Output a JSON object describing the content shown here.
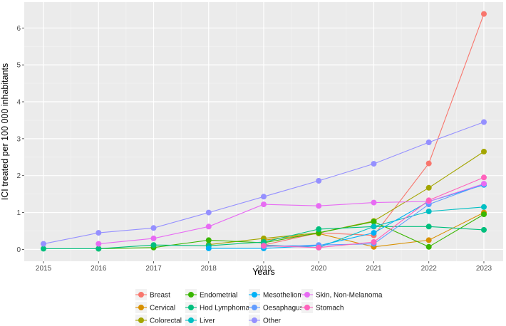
{
  "chart_data": {
    "type": "line",
    "title": "",
    "xlabel": "Years",
    "ylabel": "ICI treated per 100 000 inhabitants",
    "x": [
      2015,
      2016,
      2017,
      2018,
      2019,
      2020,
      2021,
      2022,
      2023
    ],
    "xticks": [
      "2015",
      "2016",
      "2017",
      "2018",
      "2019",
      "2020",
      "2021",
      "2022",
      "2023"
    ],
    "yticks": [
      "0",
      "1",
      "2",
      "3",
      "4",
      "5",
      "6"
    ],
    "xlim": [
      2014.65,
      2023.35
    ],
    "ylim": [
      -0.32,
      6.7
    ],
    "grid": true,
    "legend_position": "bottom",
    "series": [
      {
        "name": "Breast",
        "color": "#F8766D",
        "values": [
          null,
          null,
          null,
          null,
          0.12,
          0.45,
          0.38,
          2.33,
          6.38
        ]
      },
      {
        "name": "Cervical",
        "color": "#D89000",
        "values": [
          null,
          null,
          null,
          null,
          0.25,
          0.43,
          0.07,
          0.25,
          1.0
        ]
      },
      {
        "name": "Colorectal",
        "color": "#A3A500",
        "values": [
          null,
          null,
          null,
          0.13,
          0.3,
          0.45,
          0.77,
          1.67,
          2.65
        ]
      },
      {
        "name": "Endometrial",
        "color": "#39B600",
        "values": [
          null,
          0.02,
          0.05,
          0.25,
          0.18,
          0.45,
          0.75,
          0.07,
          0.95
        ]
      },
      {
        "name": "Hod Lymphoma",
        "color": "#00BF7D",
        "values": [
          0.02,
          0.02,
          0.12,
          0.1,
          0.2,
          0.55,
          0.62,
          0.62,
          0.53
        ]
      },
      {
        "name": "Liver",
        "color": "#00BFC4",
        "values": [
          null,
          null,
          null,
          null,
          0.12,
          0.05,
          0.62,
          1.03,
          1.15
        ]
      },
      {
        "name": "Mesothelioma",
        "color": "#00B0F6",
        "values": [
          null,
          null,
          null,
          0.03,
          0.03,
          0.1,
          0.45,
          1.3,
          1.75
        ]
      },
      {
        "name": "Oesaphagus",
        "color": "#619CFF",
        "values": [
          null,
          null,
          null,
          null,
          0.08,
          0.12,
          0.15,
          1.22,
          1.77
        ]
      },
      {
        "name": "Other",
        "color": "#9590FF",
        "values": [
          0.15,
          0.45,
          0.58,
          1.0,
          1.43,
          1.86,
          2.32,
          2.9,
          3.45
        ]
      },
      {
        "name": "Skin, Non-Melanoma",
        "color": "#E76BF3",
        "values": [
          null,
          0.15,
          0.3,
          0.62,
          1.22,
          1.18,
          1.27,
          1.3,
          1.78
        ]
      },
      {
        "name": "Stomach",
        "color": "#FF62BC",
        "values": [
          null,
          null,
          null,
          null,
          0.1,
          0.05,
          0.2,
          1.33,
          1.95
        ]
      }
    ]
  }
}
